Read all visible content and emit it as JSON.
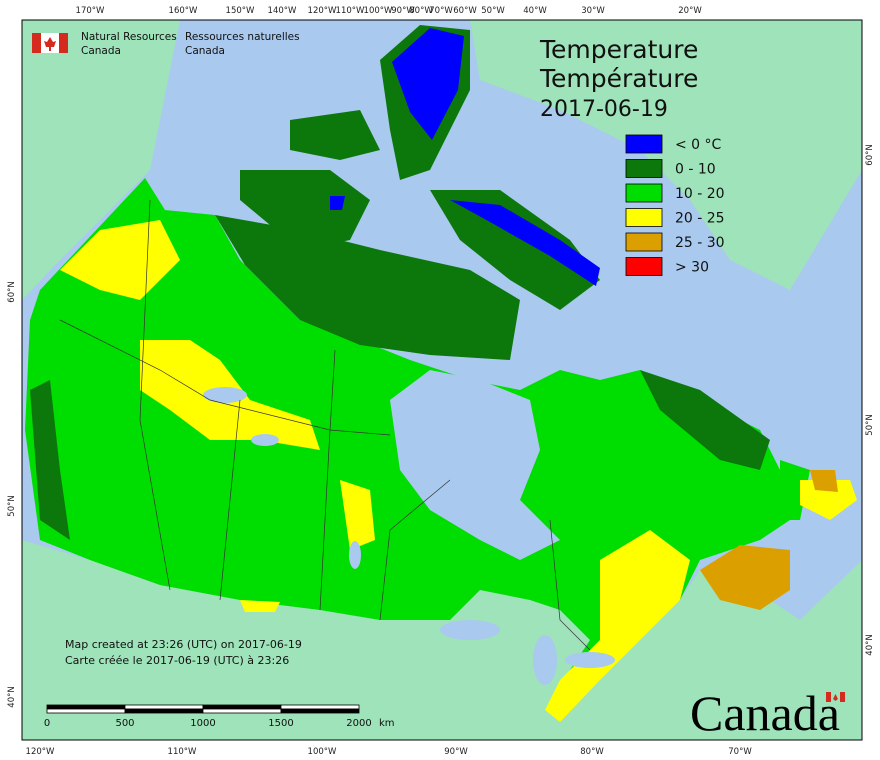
{
  "header": {
    "org_en": [
      "Natural Resources",
      "Canada"
    ],
    "org_fr": [
      "Ressources naturelles",
      "Canada"
    ]
  },
  "title": {
    "en": "Temperature",
    "fr": "Température",
    "date": "2017-06-19"
  },
  "legend": [
    {
      "label": "< 0 °C",
      "color": "#0000ff"
    },
    {
      "label": "0 - 10",
      "color": "#0c780c"
    },
    {
      "label": "10 - 20",
      "color": "#00dd00"
    },
    {
      "label": "20 - 25",
      "color": "#ffff00"
    },
    {
      "label": "25 - 30",
      "color": "#dba000"
    },
    {
      "label": "> 30",
      "color": "#ff0000"
    }
  ],
  "graticule": {
    "top": [
      "170°W",
      "160°W",
      "150°W",
      "140°W",
      "120°W",
      "110°W",
      "100°W",
      "90°W",
      "80°W",
      "70°W",
      "60°W",
      "50°W",
      "40°W",
      "30°W",
      "20°W"
    ],
    "bottom": [
      "120°W",
      "110°W",
      "100°W",
      "90°W",
      "80°W",
      "70°W"
    ],
    "left": [
      "60°N",
      "50°N",
      "40°N"
    ],
    "right": [
      "60°N",
      "50°N",
      "40°N"
    ]
  },
  "footer": [
    "Map created at 23:26 (UTC) on 2017-06-19",
    "Carte créée le 2017-06-19 (UTC) à 23:26"
  ],
  "scale_bar": {
    "ticks": [
      0,
      500,
      1000,
      1500,
      2000
    ],
    "unit": "km"
  },
  "wordmark": "Canada"
}
